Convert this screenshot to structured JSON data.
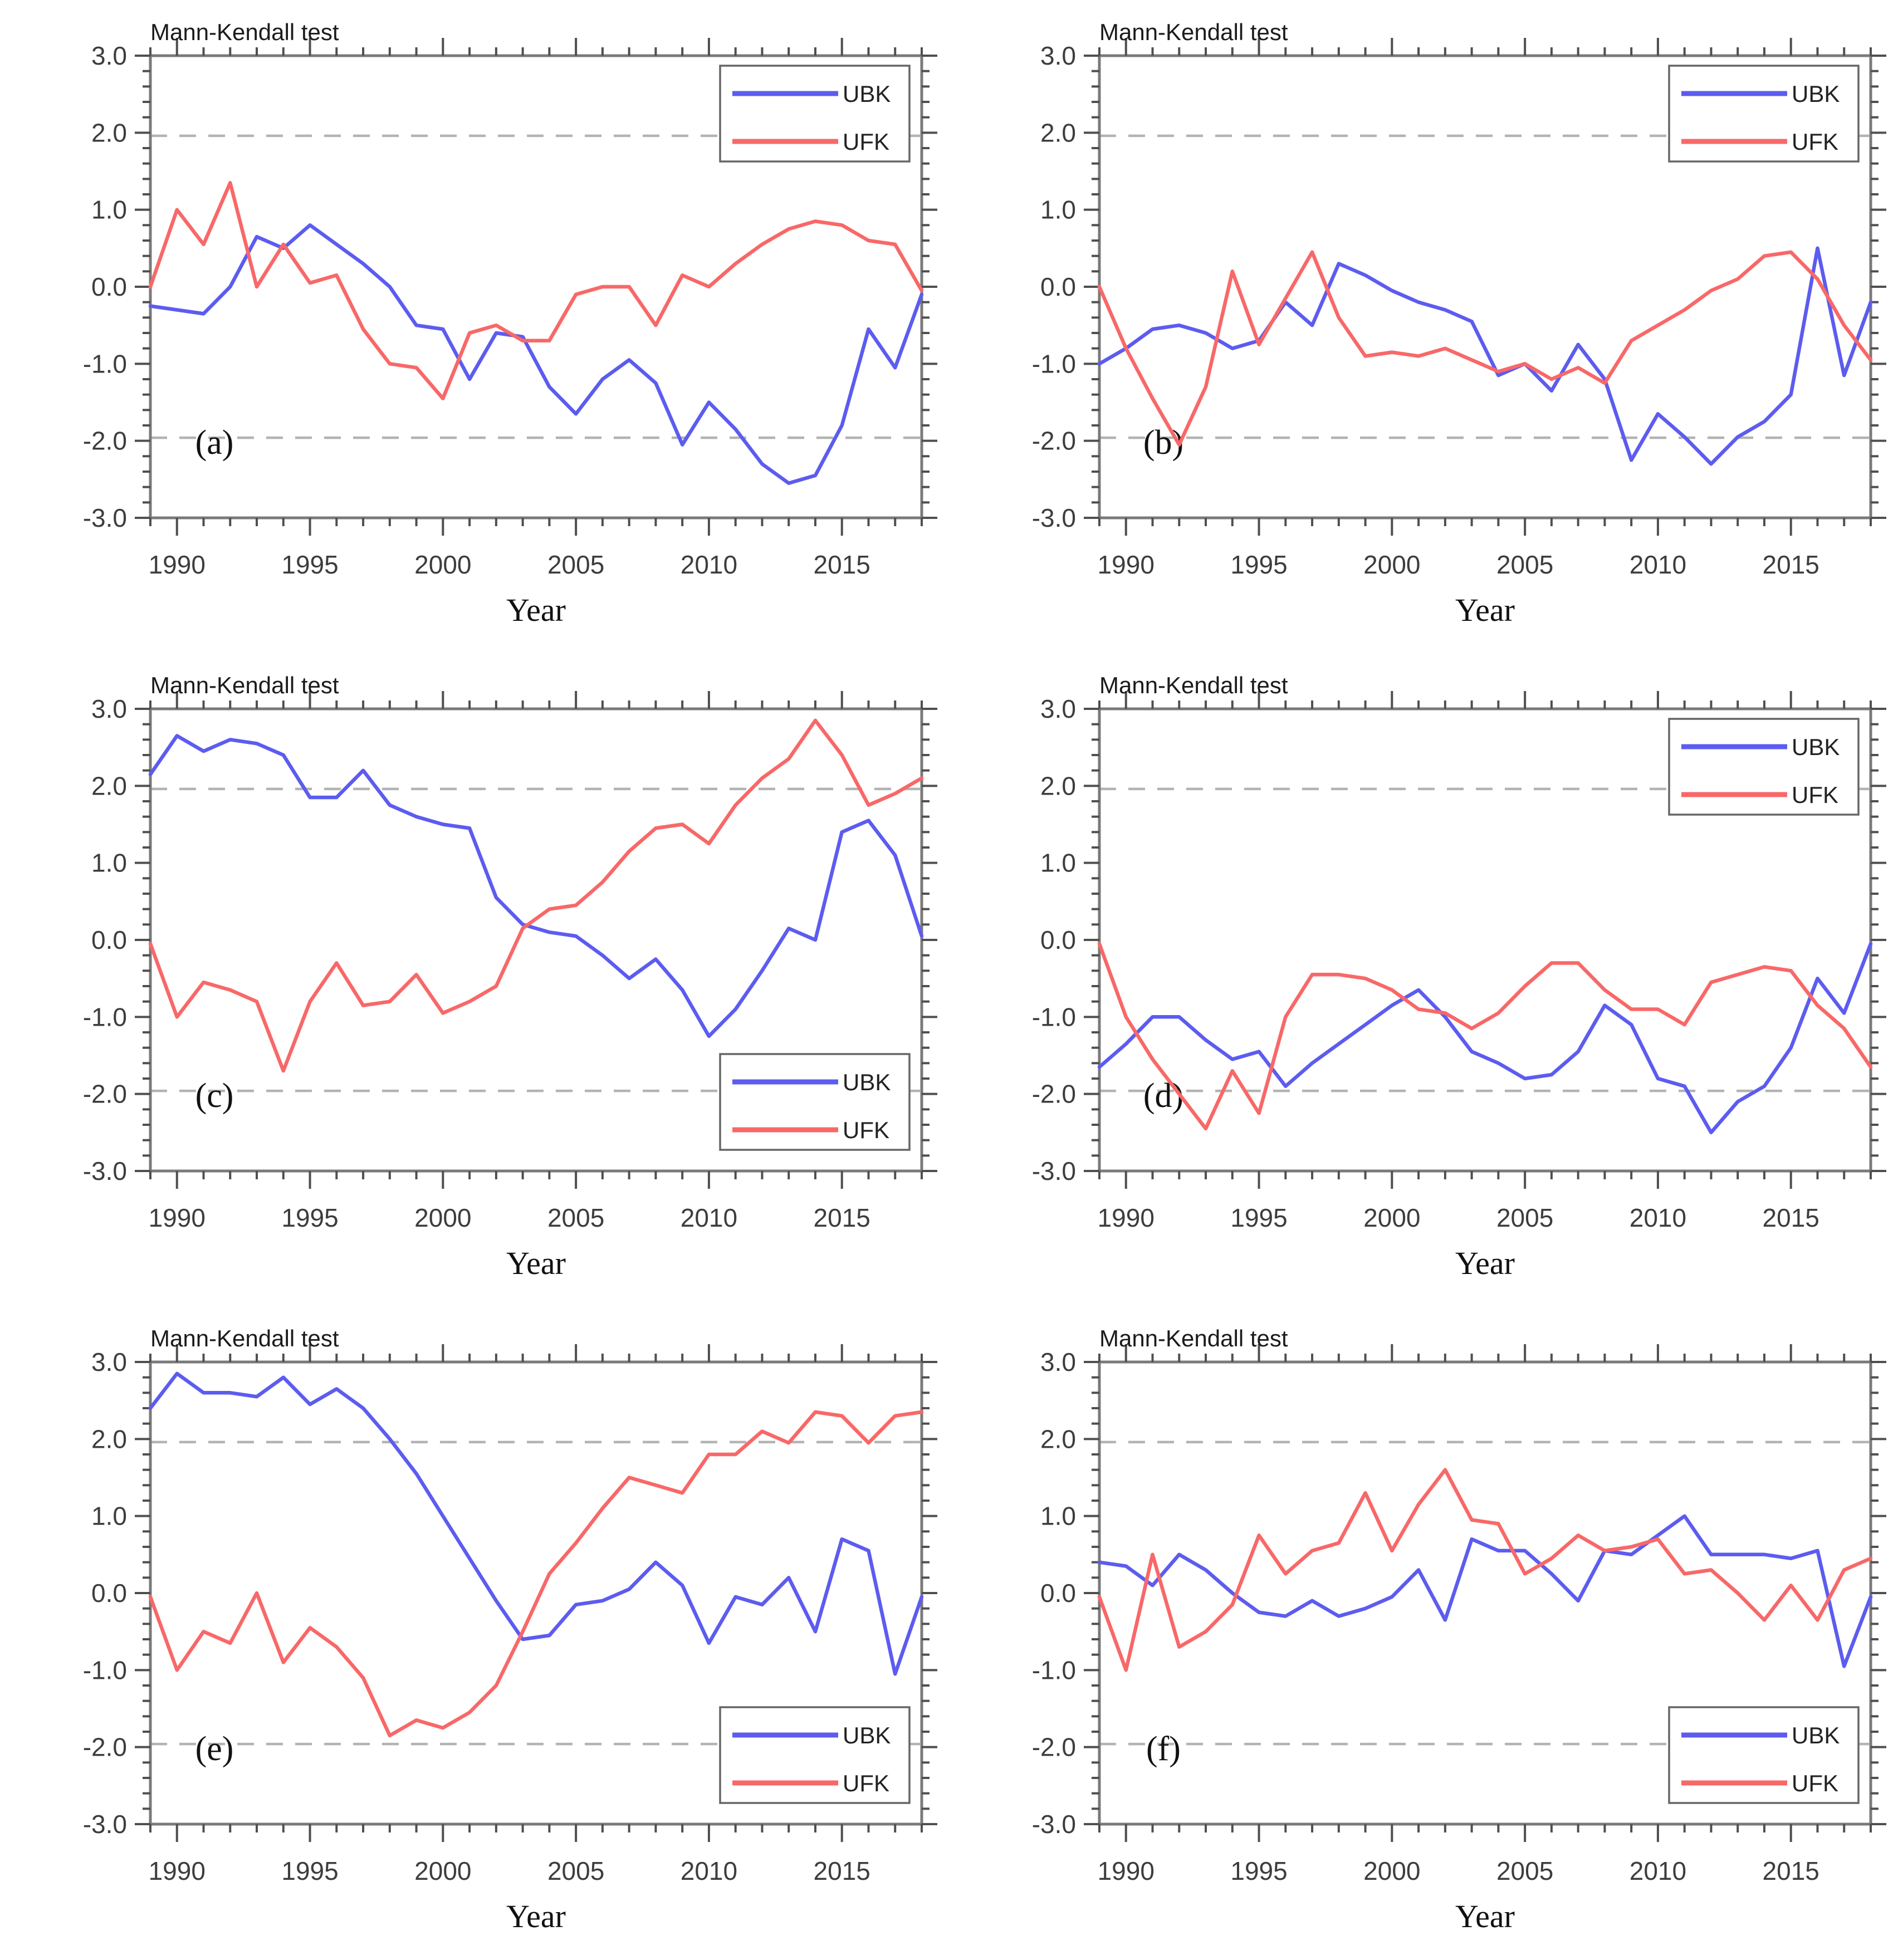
{
  "figure": {
    "panel_title": "Mann-Kendall test",
    "x_axis_label": "Year",
    "legend_labels": [
      "UBK",
      "UFK"
    ]
  },
  "colors": {
    "ubk_line": "#5c5cf0",
    "ufk_line": "#f86868",
    "significance_dash": "#b3b3b3",
    "axis_box": "#7a7a7a",
    "tick": "#4f4f4f",
    "tick_label": "#3d3d3d",
    "title_text": "#1b1b1b",
    "legend_border": "#666666"
  },
  "axes": {
    "y_min": -3.0,
    "y_max": 3.0,
    "y_major_tick_labels": [
      "3.0",
      "2.0",
      "1.0",
      "0.0",
      "-1.0",
      "-2.0",
      "-3.0"
    ],
    "y_minor_step": 0.2,
    "x_start_year": 1989,
    "x_end_year": 2018,
    "x_major_tick_years": [
      1990,
      1995,
      2000,
      2005,
      2010,
      2015
    ],
    "significance_level": 1.96
  },
  "chart_data": [
    {
      "type": "line",
      "panel_letter": "(a)",
      "title": "Mann-Kendall test",
      "xlabel": "Year",
      "x": {
        "start": 1989,
        "end": 2018,
        "step": 1
      },
      "ylim": [
        -3.0,
        3.0
      ],
      "legend_position": "top-right",
      "series": [
        {
          "name": "UBK",
          "color_key": "ubk_line",
          "values": [
            -0.25,
            -0.3,
            -0.35,
            0,
            0.65,
            0.5,
            0.8,
            0.55,
            0.3,
            0,
            -0.5,
            -0.55,
            -1.2,
            -0.6,
            -0.65,
            -1.3,
            -1.65,
            -1.2,
            -0.95,
            -1.25,
            -2.05,
            -1.5,
            -1.85,
            -2.3,
            -2.55,
            -2.45,
            -1.8,
            -0.55,
            -1.05,
            -0.1
          ]
        },
        {
          "name": "UFK",
          "color_key": "ufk_line",
          "values": [
            0,
            1.0,
            0.55,
            1.35,
            0,
            0.55,
            0.05,
            0.15,
            -0.55,
            -1.0,
            -1.05,
            -1.45,
            -0.6,
            -0.5,
            -0.7,
            -0.7,
            -0.1,
            0,
            0,
            -0.5,
            0.15,
            0,
            0.3,
            0.55,
            0.75,
            0.85,
            0.8,
            0.6,
            0.55,
            -0.05
          ]
        }
      ]
    },
    {
      "type": "line",
      "panel_letter": "(b)",
      "title": "Mann-Kendall test",
      "xlabel": "Year",
      "x": {
        "start": 1989,
        "end": 2018,
        "step": 1
      },
      "ylim": [
        -3.0,
        3.0
      ],
      "legend_position": "top-right",
      "series": [
        {
          "name": "UBK",
          "color_key": "ubk_line",
          "values": [
            -1.0,
            -0.8,
            -0.55,
            -0.5,
            -0.6,
            -0.8,
            -0.7,
            -0.2,
            -0.5,
            0.3,
            0.15,
            -0.05,
            -0.2,
            -0.3,
            -0.45,
            -1.15,
            -1.0,
            -1.35,
            -0.75,
            -1.2,
            -2.25,
            -1.65,
            -1.95,
            -2.3,
            -1.95,
            -1.75,
            -1.4,
            0.5,
            -1.15,
            -0.2
          ]
        },
        {
          "name": "UFK",
          "color_key": "ufk_line",
          "values": [
            0,
            -0.8,
            -1.45,
            -2.05,
            -1.3,
            0.2,
            -0.75,
            -0.15,
            0.45,
            -0.4,
            -0.9,
            -0.85,
            -0.9,
            -0.8,
            -0.95,
            -1.1,
            -1.0,
            -1.2,
            -1.05,
            -1.25,
            -0.7,
            -0.5,
            -0.3,
            -0.05,
            0.1,
            0.4,
            0.45,
            0.1,
            -0.5,
            -0.95
          ]
        }
      ]
    },
    {
      "type": "line",
      "panel_letter": "(c)",
      "title": "Mann-Kendall test",
      "xlabel": "Year",
      "x": {
        "start": 1989,
        "end": 2018,
        "step": 1
      },
      "ylim": [
        -3.0,
        3.0
      ],
      "legend_position": "bottom-right",
      "series": [
        {
          "name": "UBK",
          "color_key": "ubk_line",
          "values": [
            2.15,
            2.65,
            2.45,
            2.6,
            2.55,
            2.4,
            1.85,
            1.85,
            2.2,
            1.75,
            1.6,
            1.5,
            1.45,
            0.55,
            0.2,
            0.1,
            0.05,
            -0.2,
            -0.5,
            -0.25,
            -0.65,
            -1.25,
            -0.9,
            -0.4,
            0.15,
            0,
            1.4,
            1.55,
            1.1,
            0.05
          ]
        },
        {
          "name": "UFK",
          "color_key": "ufk_line",
          "values": [
            -0.05,
            -1.0,
            -0.55,
            -0.65,
            -0.8,
            -1.7,
            -0.8,
            -0.3,
            -0.85,
            -0.8,
            -0.45,
            -0.95,
            -0.8,
            -0.6,
            0.15,
            0.4,
            0.45,
            0.75,
            1.15,
            1.45,
            1.5,
            1.25,
            1.75,
            2.1,
            2.35,
            2.85,
            2.4,
            1.75,
            1.9,
            2.1
          ]
        }
      ]
    },
    {
      "type": "line",
      "panel_letter": "(d)",
      "title": "Mann-Kendall test",
      "xlabel": "Year",
      "x": {
        "start": 1989,
        "end": 2018,
        "step": 1
      },
      "ylim": [
        -3.0,
        3.0
      ],
      "legend_position": "top-right",
      "series": [
        {
          "name": "UBK",
          "color_key": "ubk_line",
          "values": [
            -1.65,
            -1.35,
            -1.0,
            -1.0,
            -1.3,
            -1.55,
            -1.45,
            -1.9,
            -1.6,
            -1.35,
            -1.1,
            -0.85,
            -0.65,
            -1.0,
            -1.45,
            -1.6,
            -1.8,
            -1.75,
            -1.45,
            -0.85,
            -1.1,
            -1.8,
            -1.9,
            -2.5,
            -2.1,
            -1.9,
            -1.4,
            -0.5,
            -0.95,
            -0.05
          ]
        },
        {
          "name": "UFK",
          "color_key": "ufk_line",
          "values": [
            -0.05,
            -1.0,
            -1.55,
            -2.0,
            -2.45,
            -1.7,
            -2.25,
            -1.0,
            -0.45,
            -0.45,
            -0.5,
            -0.65,
            -0.9,
            -0.95,
            -1.15,
            -0.95,
            -0.6,
            -0.3,
            -0.3,
            -0.65,
            -0.9,
            -0.9,
            -1.1,
            -0.55,
            -0.45,
            -0.35,
            -0.4,
            -0.85,
            -1.15,
            -1.65
          ]
        }
      ]
    },
    {
      "type": "line",
      "panel_letter": "(e)",
      "title": "Mann-Kendall test",
      "xlabel": "Year",
      "x": {
        "start": 1989,
        "end": 2018,
        "step": 1
      },
      "ylim": [
        -3.0,
        3.0
      ],
      "legend_position": "bottom-right",
      "series": [
        {
          "name": "UBK",
          "color_key": "ubk_line",
          "values": [
            2.4,
            2.85,
            2.6,
            2.6,
            2.55,
            2.8,
            2.45,
            2.65,
            2.4,
            2.0,
            1.55,
            1.0,
            0.45,
            -0.1,
            -0.6,
            -0.55,
            -0.15,
            -0.1,
            0.05,
            0.4,
            0.1,
            -0.65,
            -0.05,
            -0.15,
            0.2,
            -0.5,
            0.7,
            0.55,
            -1.05,
            -0.05
          ]
        },
        {
          "name": "UFK",
          "color_key": "ufk_line",
          "values": [
            -0.05,
            -1.0,
            -0.5,
            -0.65,
            0,
            -0.9,
            -0.45,
            -0.7,
            -1.1,
            -1.85,
            -1.65,
            -1.75,
            -1.55,
            -1.2,
            -0.5,
            0.25,
            0.65,
            1.1,
            1.5,
            1.4,
            1.3,
            1.8,
            1.8,
            2.1,
            1.95,
            2.35,
            2.3,
            1.95,
            2.3,
            2.35
          ]
        }
      ]
    },
    {
      "type": "line",
      "panel_letter": "(f)",
      "title": "Mann-Kendall test",
      "xlabel": "Year",
      "x": {
        "start": 1989,
        "end": 2018,
        "step": 1
      },
      "ylim": [
        -3.0,
        3.0
      ],
      "legend_position": "bottom-right",
      "series": [
        {
          "name": "UBK",
          "color_key": "ubk_line",
          "values": [
            0.4,
            0.35,
            0.1,
            0.5,
            0.3,
            0,
            -0.25,
            -0.3,
            -0.1,
            -0.3,
            -0.2,
            -0.05,
            0.3,
            -0.35,
            0.7,
            0.55,
            0.55,
            0.25,
            -0.1,
            0.55,
            0.5,
            0.75,
            1.0,
            0.5,
            0.5,
            0.5,
            0.45,
            0.55,
            -0.95,
            -0.05
          ]
        },
        {
          "name": "UFK",
          "color_key": "ufk_line",
          "values": [
            -0.05,
            -1.0,
            0.5,
            -0.7,
            -0.5,
            -0.15,
            0.75,
            0.25,
            0.55,
            0.65,
            1.3,
            0.55,
            1.15,
            1.6,
            0.95,
            0.9,
            0.25,
            0.45,
            0.75,
            0.55,
            0.6,
            0.7,
            0.25,
            0.3,
            0,
            -0.35,
            0.1,
            -0.35,
            0.3,
            0.45
          ]
        }
      ]
    }
  ]
}
